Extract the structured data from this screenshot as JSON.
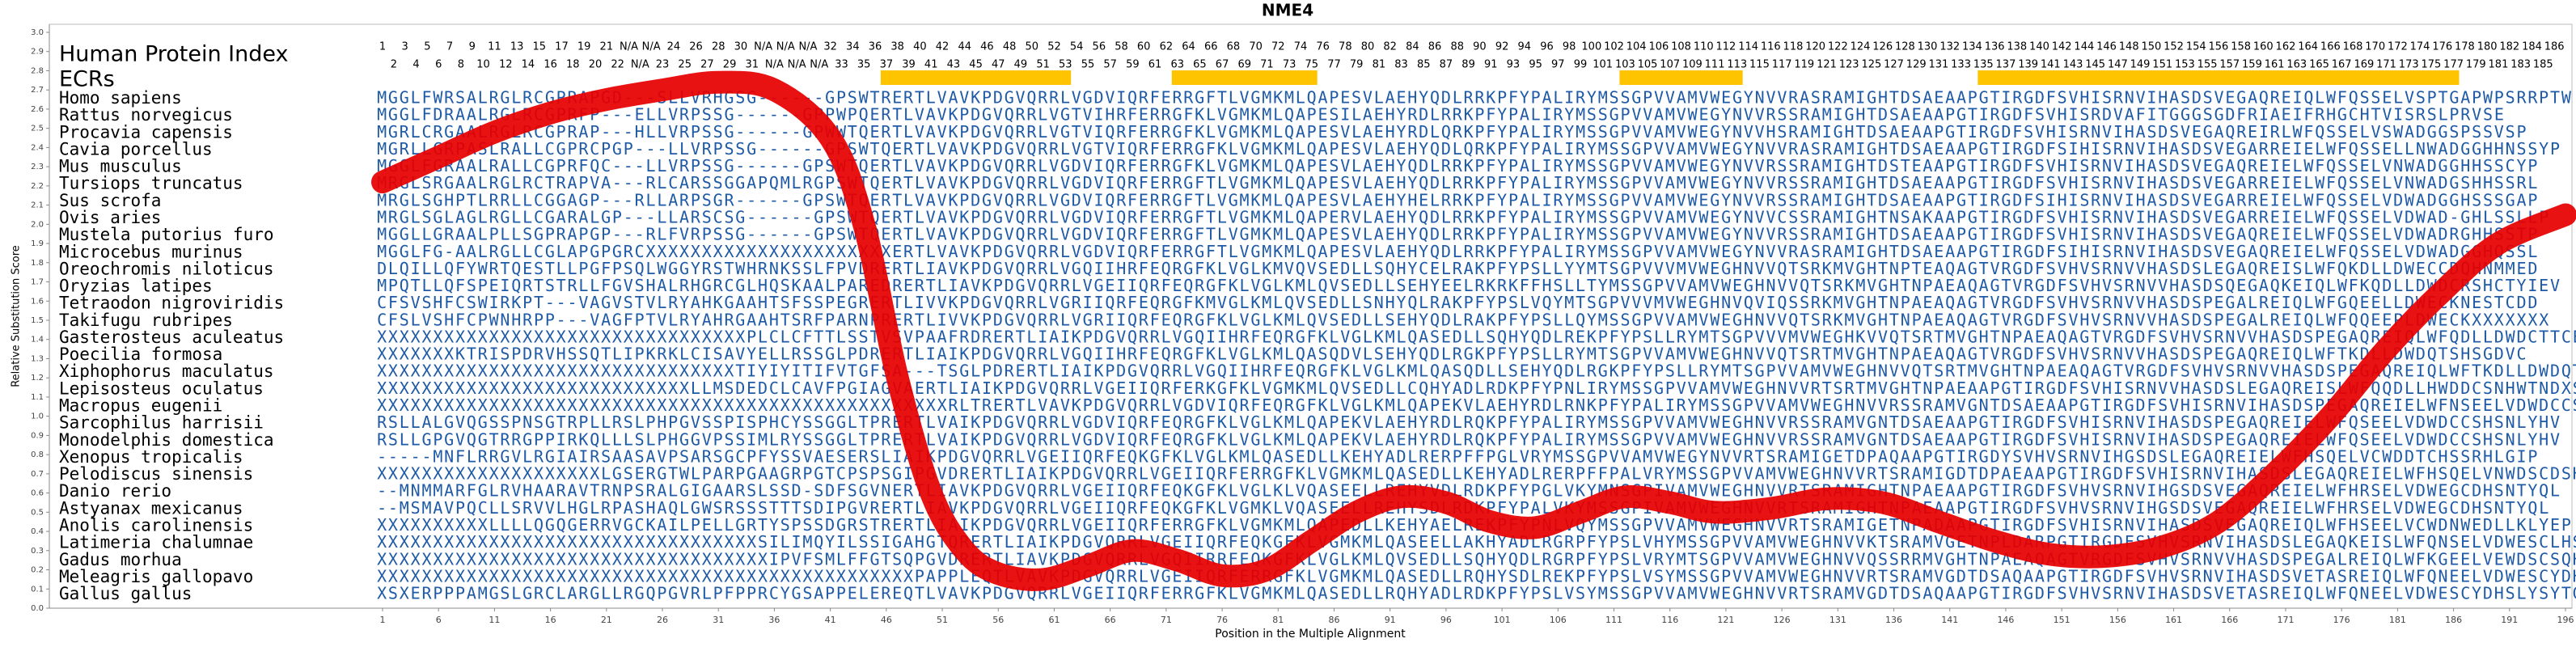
{
  "chart_data": {
    "type": "line",
    "title": "NME4",
    "ylabel": "Relative Substitution Score",
    "xlabel": "Position in the Multiple Alignment",
    "human_index_label": "Human Protein Index",
    "ecr_label": "ECRs",
    "line_color": "#e60000",
    "sequence_color": "#1f5aa6",
    "ecr_color": "#ffc400",
    "ylim": [
      0,
      3
    ],
    "xlim": [
      1,
      196
    ],
    "yticks": [
      {
        "value": 0,
        "label": "0.0"
      },
      {
        "value": 0.1,
        "label": "0.1"
      },
      {
        "value": 0.2,
        "label": "0.2"
      },
      {
        "value": 0.3,
        "label": "0.3"
      },
      {
        "value": 0.4,
        "label": "0.4"
      },
      {
        "value": 0.5,
        "label": "0.5"
      },
      {
        "value": 0.6,
        "label": "0.6"
      },
      {
        "value": 0.7,
        "label": "0.7"
      },
      {
        "value": 0.8,
        "label": "0.8"
      },
      {
        "value": 0.9,
        "label": "0.9"
      },
      {
        "value": 1,
        "label": "1.0"
      },
      {
        "value": 1.1,
        "label": "1.1"
      },
      {
        "value": 1.2,
        "label": "1.2"
      },
      {
        "value": 1.3,
        "label": "1.3"
      },
      {
        "value": 1.4,
        "label": "1.4"
      },
      {
        "value": 1.5,
        "label": "1.5"
      },
      {
        "value": 1.6,
        "label": "1.6"
      },
      {
        "value": 1.7,
        "label": "1.7"
      },
      {
        "value": 1.8,
        "label": "1.8"
      },
      {
        "value": 1.9,
        "label": "1.9"
      },
      {
        "value": 2,
        "label": "2.0"
      },
      {
        "value": 2.1,
        "label": "2.1"
      },
      {
        "value": 2.2,
        "label": "2.2"
      },
      {
        "value": 2.3,
        "label": "2.3"
      },
      {
        "value": 2.4,
        "label": "2.4"
      },
      {
        "value": 2.5,
        "label": "2.5"
      },
      {
        "value": 2.6,
        "label": "2.6"
      },
      {
        "value": 2.7,
        "label": "2.7"
      },
      {
        "value": 2.8,
        "label": "2.8"
      },
      {
        "value": 2.9,
        "label": "2.9"
      },
      {
        "value": 3,
        "label": "3.0"
      }
    ],
    "xticks": [
      1,
      6,
      11,
      16,
      21,
      26,
      31,
      36,
      41,
      46,
      51,
      56,
      61,
      66,
      71,
      76,
      81,
      86,
      91,
      96,
      101,
      106,
      111,
      116,
      121,
      126,
      131,
      136,
      141,
      146,
      151,
      156,
      161,
      166,
      171,
      176,
      181,
      186,
      191,
      196
    ],
    "x": [
      1,
      6,
      11,
      16,
      21,
      26,
      31,
      36,
      41,
      44,
      47,
      50,
      53,
      56,
      60,
      64,
      68,
      72,
      76,
      80,
      84,
      88,
      92,
      96,
      100,
      104,
      108,
      112,
      116,
      120,
      125,
      130,
      135,
      140,
      145,
      150,
      155,
      160,
      165,
      170,
      175,
      180,
      185,
      190,
      196
    ],
    "values": [
      2.22,
      2.35,
      2.48,
      2.58,
      2.65,
      2.7,
      2.74,
      2.7,
      2.45,
      2.0,
      1.2,
      0.6,
      0.3,
      0.18,
      0.15,
      0.22,
      0.3,
      0.25,
      0.17,
      0.2,
      0.35,
      0.5,
      0.58,
      0.55,
      0.45,
      0.42,
      0.5,
      0.58,
      0.55,
      0.5,
      0.52,
      0.57,
      0.55,
      0.45,
      0.35,
      0.28,
      0.27,
      0.32,
      0.45,
      0.7,
      1.0,
      1.35,
      1.65,
      1.9,
      2.05
    ],
    "ecrs": [
      {
        "start": 46,
        "end": 62
      },
      {
        "start": 72,
        "end": 84
      },
      {
        "start": 112,
        "end": 122
      },
      {
        "start": 144,
        "end": 186
      }
    ],
    "human_index": [
      1,
      2,
      3,
      4,
      5,
      6,
      7,
      8,
      9,
      10,
      11,
      12,
      13,
      14,
      15,
      16,
      17,
      18,
      19,
      20,
      21,
      22,
      "N/A",
      "N/A",
      "N/A",
      23,
      24,
      25,
      26,
      27,
      28,
      29,
      30,
      31,
      "N/A",
      "N/A",
      "N/A",
      "N/A",
      "N/A",
      "N/A",
      32,
      33,
      34,
      35,
      36,
      37,
      38,
      39,
      40,
      41,
      42,
      43,
      44,
      45,
      46,
      47,
      48,
      49,
      50,
      51,
      52,
      53,
      54,
      55,
      56,
      57,
      58,
      59,
      60,
      61,
      62,
      63,
      64,
      65,
      66,
      67,
      68,
      69,
      70,
      71,
      72,
      73,
      74,
      75,
      76,
      77,
      78,
      79,
      80,
      81,
      82,
      83,
      84,
      85,
      86,
      87,
      88,
      89,
      90,
      91,
      92,
      93,
      94,
      95,
      96,
      97,
      98,
      99,
      100,
      101,
      102,
      103,
      104,
      105,
      106,
      107,
      108,
      109,
      110,
      111,
      112,
      113,
      114,
      115,
      116,
      117,
      118,
      119,
      120,
      121,
      122,
      123,
      124,
      125,
      126,
      127,
      128,
      129,
      130,
      131,
      132,
      133,
      134,
      135,
      136,
      137,
      138,
      139,
      140,
      141,
      142,
      143,
      144,
      145,
      146,
      147,
      148,
      149,
      150,
      151,
      152,
      153,
      154,
      155,
      156,
      157,
      158,
      159,
      160,
      161,
      162,
      163,
      164,
      165,
      166,
      167,
      168,
      169,
      170,
      171,
      172,
      173,
      174,
      175,
      176,
      177,
      178,
      179,
      180,
      181,
      182,
      183,
      184,
      185,
      186
    ],
    "rows": [
      {
        "species": "Homo sapiens",
        "sequence": "MGGLFWRSALRGLRCGPRAPGD---SLLVRHGSG------GPSWTRERTLVAVKPDGVQRRLVGDVIQRFERRGFTLVGMKMLQAPESVLAEHYQDLRRKPFYPALIRYMSSGPVVAMVWEGYNVVRASRAMIGHTDSAEAAPGTIRGDFSVHISRNVIHASDSVEGAQREIQLWFQSSELVSPTGAPWPSRRPTW"
      },
      {
        "species": "Rattus norvegicus",
        "sequence": "MGGLFDRAALRGLRCGPRFP---ELLVRPSSG------GPPWPQERTLVAVKPDGVQRRLVGTVIHRFERRGFKLVGMKMLQAPESILAEHYRDLRRKPFYPALIRYMSSGPVVAMVWEGYNVVRSSRAMIGHTDSAEAAPGTIRGDFSVHISRDVAFITGGGSGDFRIAEIFRHGCHTVISRSLPRVSE"
      },
      {
        "species": "Procavia capensis",
        "sequence": "MGRLCRGAALRGLRCGPRAP---HLLVRPSSG------GPWWTQERTLVAVKPDGVQRRLVGTVIQRFERRGFKLVGMKMLQAPESVLAEHYRDLQRKPFYPALIRYMSSGPVVAMVWEGYNVVHSRAMIGHTDSAEAAPGTIRGDFSVHISRNVIHASDSVEGAQREIRLWFQSSELVSWADGGSPSSVSP"
      },
      {
        "species": "Cavia porcellus",
        "sequence": "MGRLLGRPASLRALLCGPRCPGP---LLVRPSSG------GPSWTQERTLVAVKPDGVQRRLVGTVIQRFERRGFKLVGMKMLQAPESVLAEHYQDLQRKPFYPALIRYMSSGPVVAMVWEGYNVVRASRAMIGHTDSAEAAPGTIRGDFSIHISRNVIHASDSVEGARREIELWFQSSELLNWADGGHHNSSYP"
      },
      {
        "species": "Mus musculus",
        "sequence": "MGGLFGRAALRALLCGPRFQC---LLVRPSSG------GPSWTQERTLVAVKPDGVQRRLVGDVIQRFERRGFKLVGMKMLQAPESVLAEHYQDLRRKPFYPALIRYMSSGPVVAMVWEGYNVVRSSRAMIGHTDSTEAAPGTIRGDFSVHISRNVIHASDSVEGAQREIELWFQSSELVNWADGGHHSSCYP"
      },
      {
        "species": "Tursiops truncatus",
        "sequence": "MRGLSRGAALRGLRCTRAPVA---RLCARSSGGAPQMLRGPSWTQERTLVAVKPDGVQRRLVGDVIQRFERRGFTLVGMKMLQAPESVLAEHYQDLRRKPFYPALIRYMSSGPVVAMVWEGYNVVRSSRAMIGHTDSAEAAPGTIRGDFSVHISRNVIHASDSVEGARREIELWFQSSELVNWADGSHHSSRL"
      },
      {
        "species": "Sus scrofa",
        "sequence": "MRGLSGHPTLRRLLCGGAGP---RLLARPSGR------GPSWTQERTLVAVKPDGVQRRLVGDVIQRFERRGFTLVGMKMLQAPESVLAEHYHELRRKPFYPALIRYMSSGPVVAMVWEGYNVVRSSRAMIGHTDSAEAAPGTIRGDFSIHISRNVIHASDSVEGARREIELWFQSSELVDWADGGHSSSGAP"
      },
      {
        "species": "Ovis aries",
        "sequence": "MRGLSGLAGLRGLLCGARALGP---LLARSCSG------GPSWTQERTLVAVKPDGVQRRLVGDVIQRFERRGFTLVGMKMLQAPERVLAEHYQDLRRKPFYPALIRYMSSGPVVAMVWEGYNVVCSSRAMIGHTNSAKAAPGTIRGDFSVHISRNVIHASDSVEGARREIELWFQSSELVDWAD-GHLSSLLP"
      },
      {
        "species": "Mustela putorius furo",
        "sequence": "MGGLLGRAALPLLSGPRAPGP---RLFVRPSSG------GPSWTQERTLVAVKPDGVQRRLVGDVIQRFERRGFTLVGMKMLQAPESVLAEHYQDLRRKPFYPALIRYMSSGPVVAMVWEGYNVVRSSRAMIGHTDSAEAAPGTIRGDFSVHISRNVIHASDSVEGAQREIELWFQSSELVDWADRGHHSSTP"
      },
      {
        "species": "Microcebus murinus",
        "sequence": "MGGLFG-AALRGLLCGLAPGPGRCXXXXXXXXXXXXXXXXXXXXXXERTLVAVKPDGVQRRLVGDVIQRFERRGFTLVGMKMLQAPESVLAEHYQDLRRKPFYPALIRYMSSGPVVAMVWEGYNVVRASRAMIGHTDSAEAAPGTIRGDFSIHISRNVIHASDSVEGAQREIELWFQSSELVDWADGGHQSSL"
      },
      {
        "species": "Oreochromis niloticus",
        "sequence": "DLQILLQFYWRTQESTLLPGFPSQLWGGYRSTWHRNKSSLFPVDRERTLIAVKPDGVQRRLVGQIIHRFEQRGFKLVGLKMVQVSEDLLSQHYCELRAKPFYPSLLYYMTSGPVVVMVWEGHNVVQTSRKMVGHTNPTEAQAGTVRGDFSVHVSRNVVHASDSLEGAQREISLWFQKDLLDWECCDQHNMMED"
      },
      {
        "species": "Oryzias latipes",
        "sequence": "MPQTLLQFSPEIQRTSTRLLFGVSHALRHGRCGLHQSKAALPAREDRERTLIAVKPDGVQRRLVGEIIQRFEQRGFKLVGLKMLQVSEDLLSEHYEELRKRKFFHSLLTYMSSGPVVAMVWEGHNVVQTSRKMVGHTNPAEAQAGTVRGDFSVHVSRNVVHASDSQEGAQKEIQLWFKQDLLDWDCRSHCTYIEV"
      },
      {
        "species": "Tetraodon nigroviridis",
        "sequence": "CFSVSHFCSWIRKPT---VAGVSTVLRYAHKGAAHTSFSSPEGRERTLIVVKPDGVQRRLVGRIIQRFEQRGFKMVGLKMLQVSEDLLSNHYQLRAKPFYPSLVQYMTSGPVVVMVWEGHNVQVIQSSRKMVGHTNPAEAQAGTVRGDFSVHVSRNVVHASDSPEGALREIQLWFGQEELLDWECKNESTCDD"
      },
      {
        "species": "Takifugu rubripes",
        "sequence": "CFSLVSHFCPWNHRPP---VAGFPTVLRYAHRGAAHTSRFPARNPRERTLIVVKPDGVQRRLVGRIIQRFEQRGFKLVGLKMLQVSEDLLSEHYQDLRAKPFYPSLLQYMSSGPVVAMVWEGHNVVQTSRKMVGHTNPAEAQAGTVRGDFSVHVSRNVVHASDSPEGALREIQLWFQQEEPLDWECKXXXXXXX"
      },
      {
        "species": "Gasterosteus aculeatus",
        "sequence": "XXXXXXXXXXXXXXXXXXXXXXXXXXXXXXXXXPLCLCFTTLSSTVSVPAAFRDRERTLIAIKPDGVQRRLVGQIIHRFEQRGFKLVGLKMLQASEDLLSQHYQDLREKPFYPSLLRYMTSGPVVVMVWEGHKVVQTSRTMVGHTNPAEAQAGTVRGDFSVHVSRNVVHASDSPEGAQREIQLWFQDLLDWDCTTCEX"
      },
      {
        "species": "Poecilia formosa",
        "sequence": "XXXXXXXKTRISPDRVHSSQTLIPKRKLCISAVYELLRSSGLPDRERTLIAIKPDGVQRRLVGQIIHRFEQRGFKLVGLKMLQASQDVLSEHYQDLRGKPFYPSLLRYMTSGPVVAMVWEGHNVVQTSRTMVGHTNPAEAQAGTVRGDFSVHVSRNVVHASDSPEGAQREIQLWFTKDLLDWDQTSHSGDVC"
      },
      {
        "species": "Xiphophorus maculatus",
        "sequence": "XXXXXXXXXXXXXXXXXXXXXXXXXXXXXXXXTIYIYITIFVTGFSA---TSGLPDRERTLIAIKPDGVQRRLVGQIIHRFEQRGFKLVGLKMLQASQDLLSEHYQDLRGKPFYPSLLRYMTSGPVVAMVWEGHNVVQTSRTMVGHTNPAEAQAGTVRGDFSVHVSRNVVHASDSPEGAQREIQLWFTKDLLDWDQTSNDXT"
      },
      {
        "species": "Lepisosteus oculatus",
        "sequence": "XXXXXXXXXXXXXXXXXXXXXXXXXXXXLLMSDEDCLCAVFPGIAGVAERTLIAIKPDGVQRRLVGEIIQRFERKGFKLVGMKMLQVSEDLLCQHYADLRDKPFYPNLIRYMSSGPVVAMVWEGHNVVRTSRTMVGHTNPAEAAPGTIRGDFSVHISRNVVHASDSLEGAQREISLWFQQDLLHWDDCSNHWTNDXS"
      },
      {
        "species": "Macropus eugenii",
        "sequence": "XXXXXXXXXXXXXXXXXXXXXXXXXXXXXXXXXXXXXXXXXXXXXXXXXXXRLTRERTLVAVKPDGVQRRLVGDVIQRFEQRGFKLVGLKMLQAPEKVLAEHYRDLRNKPFYPALIRYMSSGPVVAMVWEGHNVVRSSRAMVGNTDSAEAAPGTIRGDFSVHISRNVIHASDSPEGAQREIELWFNSEELVDWDCCSHSNLYHV"
      },
      {
        "species": "Sarcophilus harrisii",
        "sequence": "RSLLALGVQGSSPNSGTRPLLRSLPHPGVSSPISPHCYSSGGLTPRERTLVAIKPDGVQRRLVGDVIQRFEQRGFKLVGLKMLQAPEKVLAEHYRDLRQKPFYPALIRYMSSGPVVAMVWEGHNVVRSSRAMVGNTDSAEAAPGTIRGDFSVHISRNVIHASDSPEGAQREIELWFQSEELVDWDCCSHSNLYHV"
      },
      {
        "species": "Monodelphis domestica",
        "sequence": "RSLLGPGVQGTRRGPPIRKQLLLSLPHGGVPSSIMLRYSSGGLTPRERTLVAIKPDGVQRRLVGDVIQRFEQRGFKLVGLKMLQAPEKVLAEHYRDLRQKPFYPALIRYMSSGPVVAMVWEGHNVVRSSRAMVGNTDSAEAAPGTIRGDFSVHISRNVIHASDSPEGAQREIELWFQSEELVDWDCCSHSNLYHV"
      },
      {
        "species": "Xenopus tropicalis",
        "sequence": "-----MNFLRRGVLRGIAIRSAASAVPSARSGCPFYSSVAESERSLIAIKPDGVQRRLVGEIIQRFEQKGFKLVGLKMLQASEDLLKEHYADLRERPFFPGLVRYMSSGPVVAMVWEGYNVVRTSRAMIGETDPAQAAPGTIRGDYSVHVSRNVIHGSDSLEGAQREIELWFHSQELVCWDDTCHSSRHLGIP"
      },
      {
        "species": "Pelodiscus sinensis",
        "sequence": "XXXXXXXXXXXXXXXXXXXXLGSERGTWLPARPGAAGRPGTCPSPSGIPGVDRERTLIAIKPDGVQRRLVGEIIQRFERRGFKLVGMKMLQASEDLLKEHYADLRERPFFPALVRYMSSGPVVAMVWEGHNVVRTSRAMIGDTDPAEAAPGTIRGDFSVHISRNVIHASDSLEGAQREIELWFHSQELVNWDSCDSHQEP"
      },
      {
        "species": "Danio rerio",
        "sequence": "--MNMMARFGLRVHAARAVTRNPSRALGIGAARSLSSD-SDFSGVNERTLIAVKPDGVQRRLVGEIIQRFEQKGFKLVGLKLVQASEELLREHYVDLRDKPFYPGLVKYMNSGPIVAMVWEGHNVVRTSRAMIGHTNPAEAAPGTIRGDFSVHVSRNVIHGSDSVEGAQREIELWFHRSELVDWEGCDHSNTYQL"
      },
      {
        "species": "Astyanax mexicanus",
        "sequence": "--MSMAVPQCLLSRVVLHGLRPASHAQLGWSRSSSTTTSDIPGVRERTLIAVKPDGVQRRLVGEIIQRFEQKGFKLVGMKLVQASEELLREHYSDLRDKPFYPALVKYMSSGPIVAMVWEGHNVVRTSRAMIGHTNPAEAAPGTIRGDFSVHVSRNVIHGSDSVEGAQREIELWFHRSELVDWEGCDHSNTYQL"
      },
      {
        "species": "Anolis carolinensis",
        "sequence": "XXXXXXXXXXLLLLQGQGERRVGCKAILPELLGRTYSPSSDGRSTRERTLIAIKPDGVQRRLVGEIIQRFERRGFKLVGMKMLQAPEDLLKEHYAELREKPFYPNLVQYMSSGPVVAMVWEGHNVVRTSRAMIGETNPADAAPGTIRGDFSVHISRNVIHASDSVEGAQREIQLWFHSEELVCWDNWEDLLKLYEP"
      },
      {
        "species": "Latimeria chalumnae",
        "sequence": "XXXXXXXXXXXXXXXXXXXXXXXXXXXXXXXXXXSILIMQYILSSIGAHGTQRERTLIAIKPDGVQRRLVGEIIQRFEQKGFKLVGMKMLQASEELLAKHYADLRGRPFYPSLVHYMSSGPVVAMVWEGHNVVKTSRAMVGETNPLDARPGTIRGDFSVHVSRNVIHASDSLEGAQKEISLWFQNSELVDWESCLHSNTYQX"
      },
      {
        "species": "Gadus morhua",
        "sequence": "XXXXXXXXXXXXXXXXXXXXXXXXXXXXXXXXXXXIPVFSMLFFGTSQPGVDRERTLIAVKPDGVQRRLVGQIIRRFEQKGFKLVGLKMLQVSEDLLSQHYQDLRGRPFYPSLVRYMTSGPVVAMVWEGHNVVQSSRRMVGHTNPAEAQAGTVRGDFSVHVSRNVVHASDSPEGALREIQLWFKGEELVEWDSCSQHTNE"
      },
      {
        "species": "Meleagris gallopavo",
        "sequence": "XXXXXXXXXXXXXXXXXXXXXXXXXXXXXXXXXXXXXXXXXXXXXXXXPAPPLEQTLVAVKPDGVQRRLVGEIIQRFERRGFKLVGMKMLQASEDLLRQHYSDLREKPFYPSLVSYMSSGPVVAMVWEGHNVVRTSRAMVGDTDSAQAAPGTIRGDFSVHVSRNVIHASDSVETASREIQLWFQNEELVDWESCYDHSLYSYT"
      },
      {
        "species": "Gallus gallus",
        "sequence": "XSXERPPPAMGSLGRCLARGLLRGQPGVRLPFPPRCYGSAPPELEREQTLVAVKPDGVQRRLVGEIIQRFERRGFKLVGMKMLQASEDLLRQHYADLRDKPFYPSLVSYMSSGPVVAMVWEGHNVVRTSRAMVGDTDSAQAAPGTIRGDFSVHVSRNVIHASDSVETASREIQLWFQNEELVDWESCYDHSLYSYTGP"
      }
    ]
  }
}
